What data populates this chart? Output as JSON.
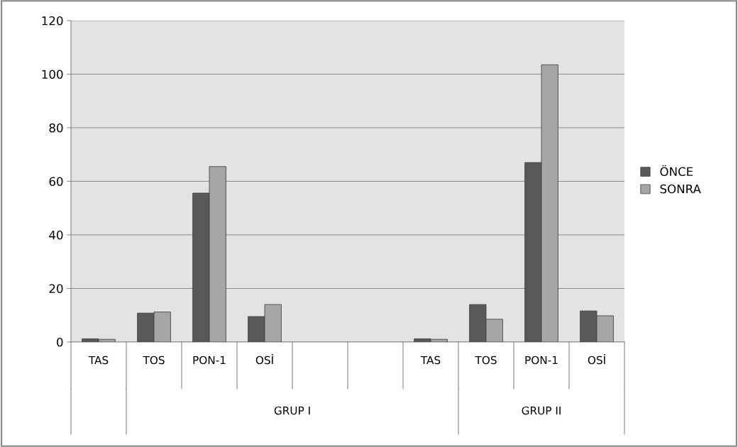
{
  "chart_data": {
    "type": "bar",
    "categories": [
      "TAS",
      "TOS",
      "PON-1",
      "OSİ",
      null,
      null,
      "TAS",
      "TOS",
      "PON-1",
      "OSİ"
    ],
    "series": [
      {
        "name": "ÖNCE",
        "color": "#595959",
        "values": [
          1.2,
          10.8,
          55.6,
          9.5,
          null,
          null,
          1.2,
          14,
          67,
          11.6
        ]
      },
      {
        "name": "SONRA",
        "color": "#a6a6a6",
        "values": [
          1.0,
          11.2,
          65.5,
          14,
          null,
          null,
          1.0,
          8.5,
          103.5,
          9.8
        ]
      }
    ],
    "annotations": [
      "GRUP I",
      "GRUP II"
    ],
    "ylim": [
      0,
      120
    ],
    "yticks": [
      0,
      20,
      40,
      60,
      80,
      100,
      120
    ],
    "grid": "y",
    "legend": "right"
  }
}
